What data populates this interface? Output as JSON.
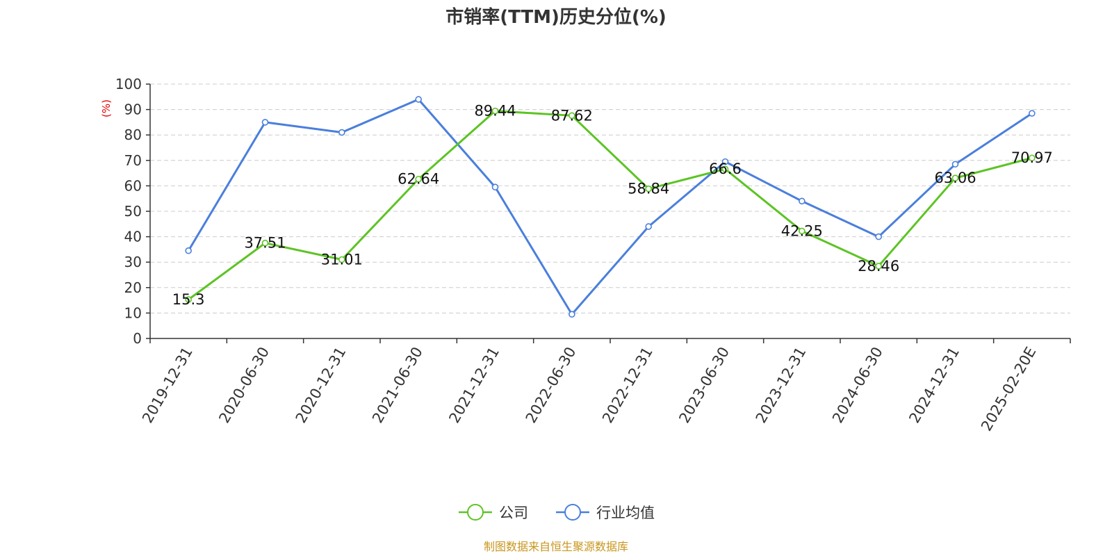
{
  "source_text": "制图数据来自恒生聚源数据库",
  "colors": {
    "company": "#5cc424",
    "industry": "#4a7fdc",
    "ylabel": "#e60000",
    "source": "#c8961e",
    "grid": "#cccccc",
    "axis": "#333333"
  },
  "chart_data": {
    "type": "line",
    "title": "市销率(TTM)历史分位(%)",
    "ylabel": "(%)",
    "xlabel": "",
    "ylim": [
      0,
      100
    ],
    "yticks": [
      0,
      10,
      20,
      30,
      40,
      50,
      60,
      70,
      80,
      90,
      100
    ],
    "grid": true,
    "legend_position": "bottom",
    "categories": [
      "2019-12-31",
      "2020-06-30",
      "2020-12-31",
      "2021-06-30",
      "2021-12-31",
      "2022-06-30",
      "2022-12-31",
      "2023-06-30",
      "2023-12-31",
      "2024-06-30",
      "2024-12-31",
      "2025-02-20E"
    ],
    "series": [
      {
        "name": "公司",
        "color": "#5cc424",
        "show_labels": true,
        "values": [
          15.3,
          37.51,
          31.01,
          62.64,
          89.44,
          87.62,
          58.84,
          66.6,
          42.25,
          28.46,
          63.06,
          70.97
        ]
      },
      {
        "name": "行业均值",
        "color": "#4a7fdc",
        "show_labels": false,
        "values": [
          34.5,
          85,
          81,
          94,
          59.5,
          9.5,
          44,
          69.5,
          54,
          40,
          68.5,
          88.5
        ]
      }
    ]
  }
}
